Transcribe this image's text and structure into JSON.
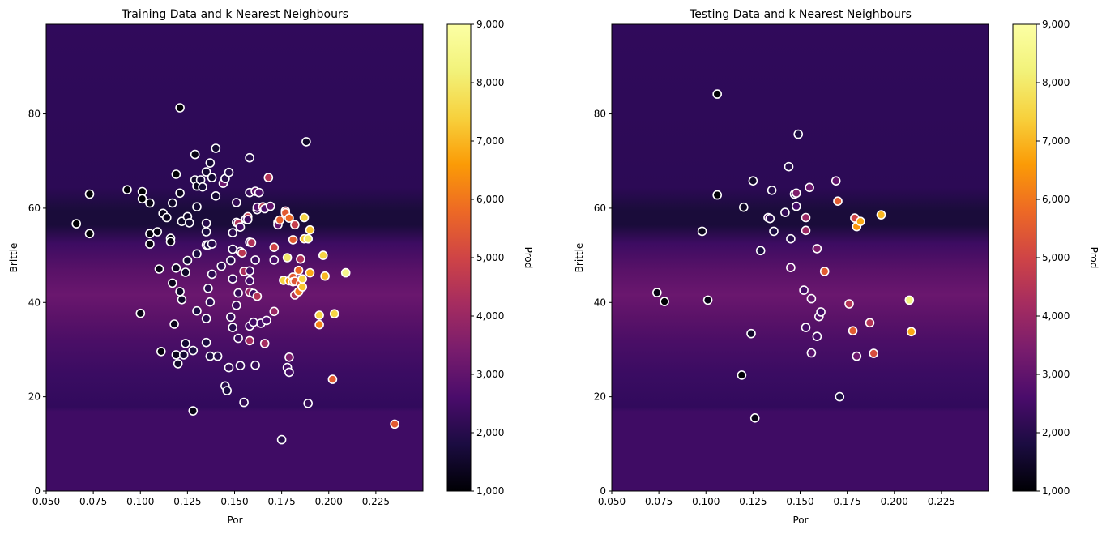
{
  "chart_data": [
    {
      "type": "scatter",
      "title": "Training Data and k Nearest Neighbours",
      "xlabel": "Por",
      "ylabel": "Brittle",
      "xlim": [
        0.05,
        0.25
      ],
      "ylim": [
        0,
        99
      ],
      "xticks": [
        "0.050",
        "0.075",
        "0.100",
        "0.125",
        "0.150",
        "0.175",
        "0.200",
        "0.225"
      ],
      "yticks": [
        "0",
        "20",
        "40",
        "60",
        "80"
      ],
      "colorbar": {
        "label": "Prod",
        "range": [
          1000,
          9000
        ],
        "ticks": [
          "1,000",
          "2,000",
          "3,000",
          "4,000",
          "5,000",
          "6,000",
          "7,000",
          "8,000",
          "9,000"
        ],
        "colormap": "inferno"
      },
      "background": "k-nearest-neighbour prediction surface, varies with Brittle only",
      "points": [
        [
          0.066,
          56.7,
          1000
        ],
        [
          0.073,
          63.0,
          1000
        ],
        [
          0.073,
          54.6,
          1000
        ],
        [
          0.093,
          63.9,
          1050
        ],
        [
          0.101,
          63.5,
          1000
        ],
        [
          0.101,
          62.0,
          1000
        ],
        [
          0.105,
          61.1,
          1200
        ],
        [
          0.1,
          37.7,
          1200
        ],
        [
          0.105,
          54.6,
          1150
        ],
        [
          0.105,
          52.4,
          1150
        ],
        [
          0.109,
          55.0,
          1200
        ],
        [
          0.11,
          47.1,
          1200
        ],
        [
          0.111,
          29.6,
          1100
        ],
        [
          0.112,
          58.9,
          1300
        ],
        [
          0.114,
          58.0,
          1300
        ],
        [
          0.116,
          53.6,
          1200
        ],
        [
          0.116,
          52.9,
          1200
        ],
        [
          0.117,
          44.1,
          1300
        ],
        [
          0.117,
          61.1,
          1500
        ],
        [
          0.118,
          35.4,
          1300
        ],
        [
          0.119,
          67.2,
          1000
        ],
        [
          0.119,
          47.3,
          1400
        ],
        [
          0.119,
          28.9,
          1300
        ],
        [
          0.12,
          27.0,
          1500
        ],
        [
          0.121,
          81.3,
          1000
        ],
        [
          0.121,
          63.2,
          1300
        ],
        [
          0.121,
          42.3,
          1500
        ],
        [
          0.122,
          57.2,
          1500
        ],
        [
          0.122,
          40.6,
          1500
        ],
        [
          0.123,
          28.9,
          1600
        ],
        [
          0.124,
          46.4,
          1500
        ],
        [
          0.124,
          31.3,
          1600
        ],
        [
          0.125,
          48.9,
          1600
        ],
        [
          0.125,
          58.2,
          1500
        ],
        [
          0.126,
          56.9,
          1600
        ],
        [
          0.128,
          17.0,
          1200
        ],
        [
          0.128,
          29.8,
          1800
        ],
        [
          0.129,
          71.4,
          1200
        ],
        [
          0.129,
          66.0,
          1500
        ],
        [
          0.13,
          64.7,
          1300
        ],
        [
          0.13,
          50.3,
          1800
        ],
        [
          0.13,
          38.2,
          1800
        ],
        [
          0.13,
          60.3,
          1600
        ],
        [
          0.132,
          66.0,
          1700
        ],
        [
          0.133,
          64.5,
          1700
        ],
        [
          0.135,
          67.7,
          1600
        ],
        [
          0.135,
          55.0,
          1800
        ],
        [
          0.135,
          52.2,
          3000
        ],
        [
          0.135,
          31.5,
          1800
        ],
        [
          0.135,
          36.6,
          2000
        ],
        [
          0.135,
          56.8,
          2000
        ],
        [
          0.136,
          43.0,
          2000
        ],
        [
          0.136,
          52.2,
          1800
        ],
        [
          0.137,
          69.6,
          1600
        ],
        [
          0.137,
          40.1,
          2100
        ],
        [
          0.137,
          28.6,
          1900
        ],
        [
          0.138,
          66.5,
          1600
        ],
        [
          0.138,
          52.4,
          2000
        ],
        [
          0.138,
          46.0,
          2100
        ],
        [
          0.14,
          72.7,
          1600
        ],
        [
          0.14,
          62.6,
          1600
        ],
        [
          0.141,
          28.6,
          2000
        ],
        [
          0.143,
          47.7,
          2100
        ],
        [
          0.144,
          65.3,
          3200
        ],
        [
          0.145,
          66.3,
          2000
        ],
        [
          0.145,
          22.3,
          2000
        ],
        [
          0.146,
          21.3,
          1800
        ],
        [
          0.147,
          67.6,
          2000
        ],
        [
          0.147,
          26.2,
          2200
        ],
        [
          0.148,
          48.9,
          2000
        ],
        [
          0.148,
          36.9,
          2200
        ],
        [
          0.149,
          51.3,
          2100
        ],
        [
          0.149,
          45.0,
          2300
        ],
        [
          0.149,
          54.8,
          2100
        ],
        [
          0.149,
          34.7,
          2000
        ],
        [
          0.151,
          57.0,
          2300
        ],
        [
          0.151,
          61.2,
          2200
        ],
        [
          0.151,
          39.4,
          2300
        ],
        [
          0.152,
          42.0,
          2200
        ],
        [
          0.152,
          32.4,
          2300
        ],
        [
          0.152,
          56.8,
          4400
        ],
        [
          0.153,
          26.6,
          2200
        ],
        [
          0.153,
          50.8,
          2200
        ],
        [
          0.153,
          56.0,
          2500
        ],
        [
          0.154,
          50.5,
          4600
        ],
        [
          0.155,
          18.8,
          2200
        ],
        [
          0.155,
          46.6,
          4300
        ],
        [
          0.156,
          57.7,
          2500
        ],
        [
          0.157,
          58.2,
          4800
        ],
        [
          0.157,
          57.6,
          2400
        ],
        [
          0.158,
          70.7,
          2000
        ],
        [
          0.158,
          63.3,
          2300
        ],
        [
          0.158,
          46.7,
          2400
        ],
        [
          0.158,
          44.6,
          2500
        ],
        [
          0.158,
          42.2,
          4000
        ],
        [
          0.158,
          35.0,
          2500
        ],
        [
          0.158,
          31.9,
          4200
        ],
        [
          0.158,
          52.8,
          2800
        ],
        [
          0.159,
          52.7,
          4400
        ],
        [
          0.16,
          41.9,
          2400
        ],
        [
          0.16,
          35.8,
          2500
        ],
        [
          0.161,
          49.0,
          2400
        ],
        [
          0.161,
          63.6,
          3000
        ],
        [
          0.161,
          26.7,
          2200
        ],
        [
          0.162,
          59.7,
          2300
        ],
        [
          0.162,
          41.3,
          4500
        ],
        [
          0.162,
          60.2,
          2800
        ],
        [
          0.163,
          63.3,
          2700
        ],
        [
          0.164,
          35.6,
          2500
        ],
        [
          0.165,
          60.3,
          4600
        ],
        [
          0.166,
          59.9,
          2600
        ],
        [
          0.166,
          31.3,
          4200
        ],
        [
          0.167,
          36.2,
          2600
        ],
        [
          0.168,
          66.5,
          4500
        ],
        [
          0.169,
          60.4,
          3000
        ],
        [
          0.171,
          51.7,
          5000
        ],
        [
          0.171,
          49.0,
          2600
        ],
        [
          0.171,
          38.1,
          4000
        ],
        [
          0.173,
          57.0,
          4600
        ],
        [
          0.173,
          56.5,
          3000
        ],
        [
          0.174,
          57.5,
          5600
        ],
        [
          0.175,
          10.9,
          2000
        ],
        [
          0.176,
          44.7,
          7500
        ],
        [
          0.177,
          59.4,
          4500
        ],
        [
          0.177,
          59.0,
          5500
        ],
        [
          0.178,
          26.2,
          2500
        ],
        [
          0.178,
          49.5,
          8000
        ],
        [
          0.179,
          25.2,
          2500
        ],
        [
          0.179,
          44.6,
          6500
        ],
        [
          0.179,
          57.9,
          5800
        ],
        [
          0.179,
          28.4,
          3500
        ],
        [
          0.181,
          45.4,
          5500
        ],
        [
          0.181,
          53.3,
          5500
        ],
        [
          0.181,
          44.4,
          6000
        ],
        [
          0.182,
          56.5,
          4800
        ],
        [
          0.182,
          41.6,
          4500
        ],
        [
          0.182,
          44.5,
          5400
        ],
        [
          0.184,
          42.3,
          6000
        ],
        [
          0.184,
          46.8,
          5800
        ],
        [
          0.185,
          44.0,
          5400
        ],
        [
          0.185,
          49.2,
          4400
        ],
        [
          0.186,
          43.3,
          7200
        ],
        [
          0.186,
          45.0,
          7500
        ],
        [
          0.187,
          58.0,
          7500
        ],
        [
          0.187,
          53.5,
          7200
        ],
        [
          0.188,
          74.1,
          1500
        ],
        [
          0.189,
          53.5,
          8000
        ],
        [
          0.189,
          18.6,
          2200
        ],
        [
          0.19,
          55.4,
          7200
        ],
        [
          0.19,
          46.3,
          6800
        ],
        [
          0.195,
          37.3,
          7500
        ],
        [
          0.195,
          35.3,
          6200
        ],
        [
          0.197,
          50.0,
          7500
        ],
        [
          0.198,
          45.6,
          7000
        ],
        [
          0.202,
          23.7,
          5500
        ],
        [
          0.203,
          37.6,
          7500
        ],
        [
          0.209,
          46.3,
          8500
        ],
        [
          0.235,
          14.2,
          5500
        ]
      ]
    },
    {
      "type": "scatter",
      "title": "Testing Data and k Nearest Neighbours",
      "xlabel": "Por",
      "ylabel": "Brittle",
      "xlim": [
        0.05,
        0.25
      ],
      "ylim": [
        0,
        99
      ],
      "xticks": [
        "0.050",
        "0.075",
        "0.100",
        "0.125",
        "0.150",
        "0.175",
        "0.200",
        "0.225"
      ],
      "yticks": [
        "0",
        "20",
        "40",
        "60",
        "80"
      ],
      "colorbar": {
        "label": "Prod",
        "range": [
          1000,
          9000
        ],
        "ticks": [
          "1,000",
          "2,000",
          "3,000",
          "4,000",
          "5,000",
          "6,000",
          "7,000",
          "8,000",
          "9,000"
        ],
        "colormap": "inferno"
      },
      "background": "k-nearest-neighbour prediction surface, varies with Brittle only",
      "points": [
        [
          0.074,
          42.1,
          1200
        ],
        [
          0.078,
          40.2,
          1000
        ],
        [
          0.098,
          55.1,
          1300
        ],
        [
          0.101,
          40.5,
          1200
        ],
        [
          0.106,
          84.2,
          1000
        ],
        [
          0.106,
          62.8,
          1000
        ],
        [
          0.119,
          24.6,
          1000
        ],
        [
          0.12,
          60.2,
          1400
        ],
        [
          0.124,
          33.4,
          1500
        ],
        [
          0.125,
          65.8,
          1500
        ],
        [
          0.126,
          15.5,
          1200
        ],
        [
          0.129,
          51.0,
          1800
        ],
        [
          0.133,
          58.0,
          3000
        ],
        [
          0.134,
          57.8,
          2000
        ],
        [
          0.135,
          63.8,
          2000
        ],
        [
          0.136,
          55.1,
          1800
        ],
        [
          0.142,
          59.1,
          2200
        ],
        [
          0.144,
          68.8,
          2000
        ],
        [
          0.145,
          53.5,
          2000
        ],
        [
          0.145,
          47.4,
          3000
        ],
        [
          0.147,
          63.0,
          2000
        ],
        [
          0.148,
          63.2,
          3500
        ],
        [
          0.148,
          60.4,
          2500
        ],
        [
          0.149,
          75.7,
          1800
        ],
        [
          0.152,
          42.6,
          2500
        ],
        [
          0.153,
          58.0,
          4000
        ],
        [
          0.153,
          34.7,
          2500
        ],
        [
          0.153,
          55.3,
          4000
        ],
        [
          0.155,
          64.4,
          3200
        ],
        [
          0.156,
          29.3,
          2800
        ],
        [
          0.156,
          40.8,
          3000
        ],
        [
          0.159,
          32.8,
          2500
        ],
        [
          0.159,
          51.4,
          3500
        ],
        [
          0.16,
          37.0,
          2800
        ],
        [
          0.161,
          38.0,
          2500
        ],
        [
          0.163,
          46.6,
          5500
        ],
        [
          0.169,
          65.8,
          3000
        ],
        [
          0.17,
          61.5,
          5500
        ],
        [
          0.171,
          20.0,
          1800
        ],
        [
          0.176,
          39.7,
          4500
        ],
        [
          0.178,
          34.0,
          5500
        ],
        [
          0.179,
          57.9,
          5000
        ],
        [
          0.18,
          28.6,
          3200
        ],
        [
          0.18,
          56.1,
          6500
        ],
        [
          0.182,
          57.2,
          6800
        ],
        [
          0.187,
          35.7,
          4500
        ],
        [
          0.189,
          29.2,
          5200
        ],
        [
          0.193,
          58.6,
          7000
        ],
        [
          0.208,
          40.5,
          8300
        ],
        [
          0.209,
          33.8,
          6800
        ]
      ]
    }
  ]
}
